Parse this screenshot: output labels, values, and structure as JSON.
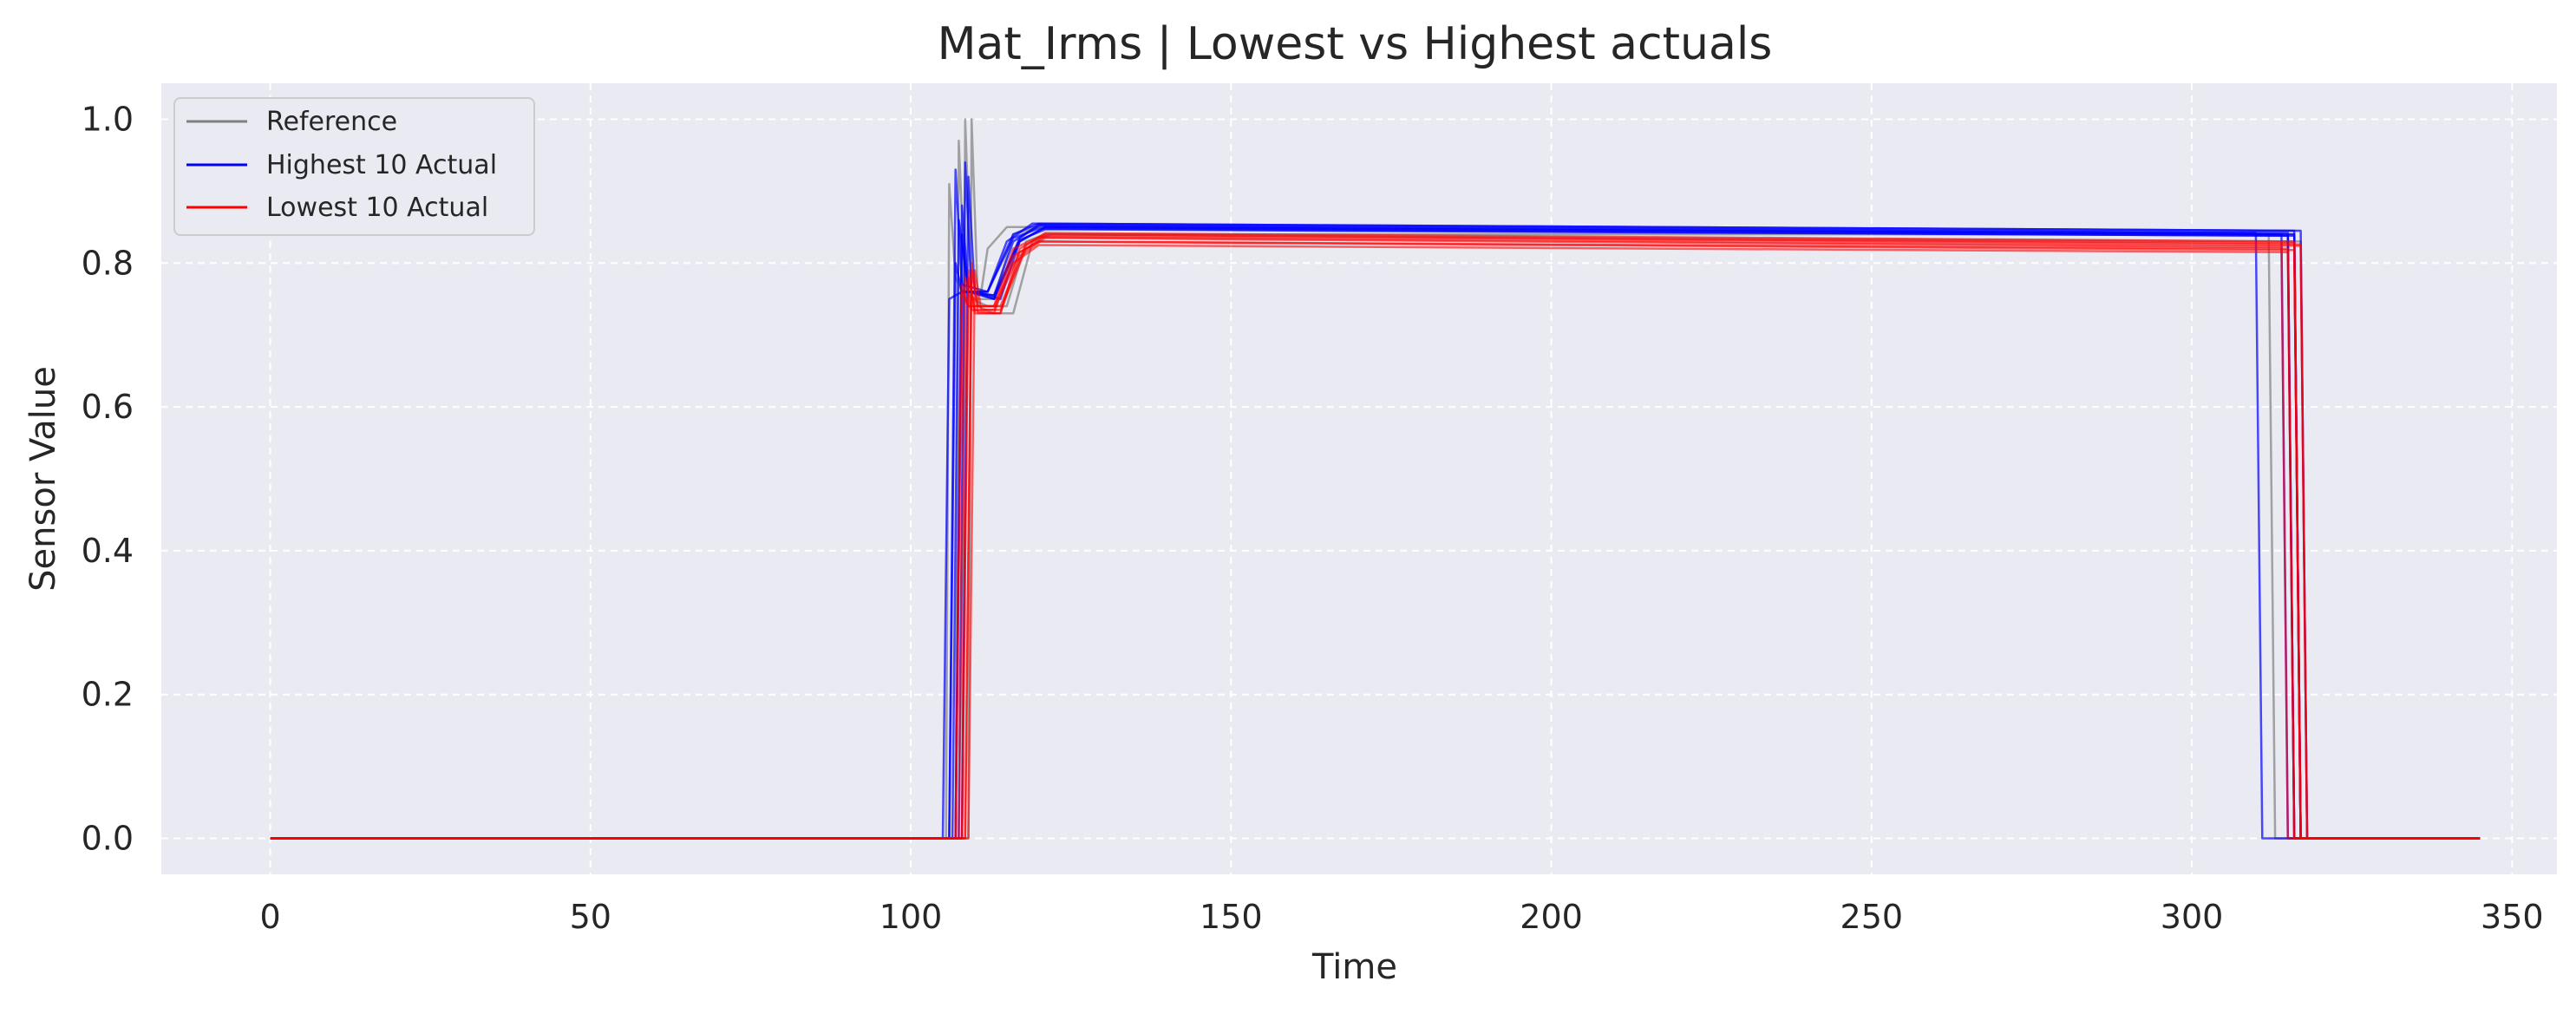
{
  "chart_data": {
    "type": "line",
    "title": "Mat_Irms | Lowest vs Highest actuals",
    "xlabel": "Time",
    "ylabel": "Sensor Value",
    "xlim": [
      -17,
      357
    ],
    "ylim": [
      -0.05,
      1.05
    ],
    "xticks": [
      0,
      50,
      100,
      150,
      200,
      250,
      300,
      350
    ],
    "yticks": [
      0.0,
      0.2,
      0.4,
      0.6,
      0.8,
      1.0
    ],
    "xtick_labels": [
      "0",
      "50",
      "100",
      "150",
      "200",
      "250",
      "300",
      "350"
    ],
    "ytick_labels": [
      "0.0",
      "0.2",
      "0.4",
      "0.6",
      "0.8",
      "1.0"
    ],
    "grid": true,
    "legend_position": "top-left",
    "colors": {
      "background": "#eaeaf2",
      "grid": "#ffffff",
      "reference": "#808080",
      "highest": "#0000ff",
      "lowest": "#ff0000"
    },
    "legend": [
      {
        "label": "Reference",
        "color": "#808080"
      },
      {
        "label": "Highest 10 Actual",
        "color": "#0000ff"
      },
      {
        "label": "Lowest 10 Actual",
        "color": "#ff0000"
      }
    ],
    "series": [
      {
        "name": "Reference",
        "color": "#808080",
        "curves": [
          [
            [
              0,
              0
            ],
            [
              105.5,
              0
            ],
            [
              106,
              0.91
            ],
            [
              107,
              0.78
            ],
            [
              108,
              0.76
            ],
            [
              111,
              0.76
            ],
            [
              112,
              0.82
            ],
            [
              115,
              0.85
            ],
            [
              120,
              0.85
            ],
            [
              315,
              0.84
            ],
            [
              316,
              0
            ],
            [
              345,
              0
            ]
          ],
          [
            [
              0,
              0
            ],
            [
              107,
              0
            ],
            [
              107.5,
              0.97
            ],
            [
              108.5,
              0.76
            ],
            [
              110,
              0.75
            ],
            [
              113,
              0.75
            ],
            [
              116,
              0.84
            ],
            [
              120,
              0.85
            ],
            [
              316,
              0.84
            ],
            [
              317,
              0
            ],
            [
              345,
              0
            ]
          ],
          [
            [
              0,
              0
            ],
            [
              108,
              0
            ],
            [
              108.5,
              1.0
            ],
            [
              109.5,
              0.75
            ],
            [
              112,
              0.74
            ],
            [
              115,
              0.74
            ],
            [
              118,
              0.83
            ],
            [
              121,
              0.84
            ],
            [
              312,
              0.84
            ],
            [
              313,
              0
            ],
            [
              345,
              0
            ]
          ],
          [
            [
              0,
              0
            ],
            [
              109,
              0
            ],
            [
              109.5,
              1.0
            ],
            [
              110.5,
              0.74
            ],
            [
              113,
              0.73
            ],
            [
              116,
              0.73
            ],
            [
              119,
              0.83
            ],
            [
              122,
              0.84
            ],
            [
              317,
              0.83
            ],
            [
              318,
              0
            ],
            [
              345,
              0
            ]
          ]
        ]
      },
      {
        "name": "Highest 10 Actual",
        "color": "#0000ff",
        "curves": [
          [
            [
              0,
              0
            ],
            [
              105,
              0
            ],
            [
              106,
              0.75
            ],
            [
              108,
              0.76
            ],
            [
              112,
              0.76
            ],
            [
              115,
              0.83
            ],
            [
              119,
              0.855
            ],
            [
              316,
              0.845
            ],
            [
              317,
              0
            ],
            [
              345,
              0
            ]
          ],
          [
            [
              0,
              0
            ],
            [
              106,
              0
            ],
            [
              107,
              0.93
            ],
            [
              108,
              0.77
            ],
            [
              112,
              0.76
            ],
            [
              116,
              0.84
            ],
            [
              120,
              0.855
            ],
            [
              317,
              0.845
            ],
            [
              318,
              0
            ],
            [
              345,
              0
            ]
          ],
          [
            [
              0,
              0
            ],
            [
              106.5,
              0
            ],
            [
              107.5,
              0.86
            ],
            [
              109,
              0.76
            ],
            [
              113,
              0.755
            ],
            [
              116,
              0.83
            ],
            [
              120,
              0.853
            ],
            [
              310,
              0.842
            ],
            [
              311,
              0
            ],
            [
              345,
              0
            ]
          ],
          [
            [
              0,
              0
            ],
            [
              107,
              0
            ],
            [
              108,
              0.88
            ],
            [
              109,
              0.76
            ],
            [
              113,
              0.75
            ],
            [
              117,
              0.835
            ],
            [
              120,
              0.852
            ],
            [
              315,
              0.842
            ],
            [
              316,
              0
            ],
            [
              345,
              0
            ]
          ],
          [
            [
              0,
              0
            ],
            [
              107.5,
              0
            ],
            [
              108.5,
              0.94
            ],
            [
              109.5,
              0.76
            ],
            [
              113,
              0.75
            ],
            [
              117,
              0.83
            ],
            [
              121,
              0.85
            ],
            [
              316,
              0.84
            ],
            [
              317,
              0
            ],
            [
              345,
              0
            ]
          ],
          [
            [
              0,
              0
            ],
            [
              108,
              0
            ],
            [
              109,
              0.92
            ],
            [
              110,
              0.76
            ],
            [
              114,
              0.75
            ],
            [
              117,
              0.83
            ],
            [
              121,
              0.85
            ],
            [
              314,
              0.84
            ],
            [
              315,
              0
            ],
            [
              345,
              0
            ]
          ],
          [
            [
              0,
              0
            ],
            [
              106,
              0
            ],
            [
              107,
              0.8
            ],
            [
              108,
              0.76
            ],
            [
              112,
              0.76
            ],
            [
              116,
              0.835
            ],
            [
              120,
              0.848
            ],
            [
              316,
              0.838
            ],
            [
              317,
              0
            ],
            [
              345,
              0
            ]
          ],
          [
            [
              0,
              0
            ],
            [
              107,
              0
            ],
            [
              108,
              0.84
            ],
            [
              109,
              0.76
            ],
            [
              113,
              0.755
            ],
            [
              117,
              0.832
            ],
            [
              121,
              0.847
            ],
            [
              315,
              0.838
            ],
            [
              316,
              0
            ],
            [
              345,
              0
            ]
          ]
        ]
      },
      {
        "name": "Lowest 10 Actual",
        "color": "#ff0000",
        "curves": [
          [
            [
              0,
              0
            ],
            [
              107,
              0
            ],
            [
              108,
              0.77
            ],
            [
              109,
              0.74
            ],
            [
              113,
              0.74
            ],
            [
              116,
              0.8
            ],
            [
              120,
              0.825
            ],
            [
              315,
              0.815
            ],
            [
              316,
              0
            ],
            [
              345,
              0
            ]
          ],
          [
            [
              0,
              0
            ],
            [
              107.5,
              0
            ],
            [
              108.5,
              0.78
            ],
            [
              109.5,
              0.735
            ],
            [
              113,
              0.73
            ],
            [
              116,
              0.81
            ],
            [
              120,
              0.83
            ],
            [
              316,
              0.818
            ],
            [
              317,
              0
            ],
            [
              345,
              0
            ]
          ],
          [
            [
              0,
              0
            ],
            [
              108,
              0
            ],
            [
              109,
              0.79
            ],
            [
              110,
              0.73
            ],
            [
              114,
              0.73
            ],
            [
              117,
              0.81
            ],
            [
              121,
              0.835
            ],
            [
              314,
              0.822
            ],
            [
              315,
              0
            ],
            [
              345,
              0
            ]
          ],
          [
            [
              0,
              0
            ],
            [
              108.5,
              0
            ],
            [
              109.5,
              0.8
            ],
            [
              110.5,
              0.73
            ],
            [
              114,
              0.73
            ],
            [
              117,
              0.82
            ],
            [
              121,
              0.84
            ],
            [
              317,
              0.826
            ],
            [
              318,
              0
            ],
            [
              345,
              0
            ]
          ],
          [
            [
              0,
              0
            ],
            [
              109,
              0
            ],
            [
              110,
              0.79
            ],
            [
              111,
              0.735
            ],
            [
              114,
              0.735
            ],
            [
              118,
              0.82
            ],
            [
              121,
              0.838
            ],
            [
              316,
              0.828
            ],
            [
              317,
              0
            ],
            [
              345,
              0
            ]
          ],
          [
            [
              0,
              0
            ],
            [
              107,
              0
            ],
            [
              108,
              0.76
            ],
            [
              109,
              0.74
            ],
            [
              113,
              0.74
            ],
            [
              116,
              0.82
            ],
            [
              120,
              0.836
            ],
            [
              317,
              0.824
            ],
            [
              318,
              0
            ],
            [
              345,
              0
            ]
          ],
          [
            [
              0,
              0
            ],
            [
              108,
              0
            ],
            [
              109,
              0.78
            ],
            [
              110,
              0.735
            ],
            [
              113,
              0.735
            ],
            [
              117,
              0.815
            ],
            [
              120,
              0.83
            ],
            [
              315,
              0.82
            ],
            [
              316,
              0
            ],
            [
              345,
              0
            ]
          ],
          [
            [
              0,
              0
            ],
            [
              108.5,
              0
            ],
            [
              109.5,
              0.79
            ],
            [
              110.5,
              0.74
            ],
            [
              114,
              0.74
            ],
            [
              118,
              0.825
            ],
            [
              121,
              0.842
            ],
            [
              316,
              0.83
            ],
            [
              317,
              0
            ],
            [
              345,
              0
            ]
          ]
        ]
      }
    ]
  }
}
